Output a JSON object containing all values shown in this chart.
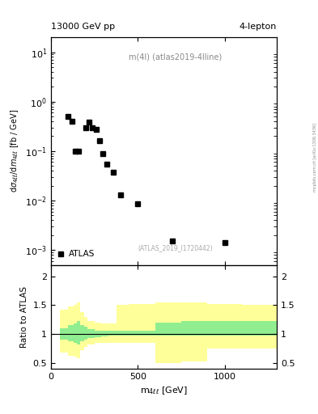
{
  "title_left": "13000 GeV pp",
  "title_right": "4-lepton",
  "annotation": "m(4l) (atlas2019-4lline)",
  "ref_text": "(ATLAS_2019_I1720442)",
  "right_label": "mcplots.cern.ch [arXiv:1306.3436]",
  "ylabel_ratio": "Ratio to ATLAS",
  "legend_label": "ATLAS",
  "data_x": [
    100,
    120,
    140,
    160,
    200,
    220,
    240,
    260,
    280,
    300,
    320,
    360,
    400,
    500,
    700,
    1000
  ],
  "data_y": [
    0.5,
    0.4,
    0.1,
    0.098,
    0.3,
    0.38,
    0.3,
    0.27,
    0.16,
    0.088,
    0.055,
    0.038,
    0.013,
    0.0085,
    0.0015,
    0.0014
  ],
  "ratio_bins_x": [
    50,
    100,
    130,
    150,
    170,
    190,
    210,
    250,
    290,
    330,
    380,
    450,
    600,
    750,
    900,
    1100,
    1300
  ],
  "ratio_green_lo": [
    0.9,
    0.88,
    0.85,
    0.82,
    0.88,
    0.9,
    0.93,
    0.95,
    0.96,
    0.97,
    0.97,
    0.97,
    0.97,
    0.97,
    0.97,
    0.97
  ],
  "ratio_green_hi": [
    1.1,
    1.15,
    1.18,
    1.22,
    1.16,
    1.12,
    1.08,
    1.06,
    1.05,
    1.05,
    1.05,
    1.05,
    1.2,
    1.22,
    1.22,
    1.22
  ],
  "ratio_yellow_lo": [
    0.68,
    0.62,
    0.6,
    0.58,
    0.72,
    0.78,
    0.82,
    0.84,
    0.84,
    0.85,
    0.85,
    0.85,
    0.5,
    0.52,
    0.75,
    0.75
  ],
  "ratio_yellow_hi": [
    1.42,
    1.48,
    1.5,
    1.55,
    1.38,
    1.3,
    1.22,
    1.2,
    1.18,
    1.18,
    1.5,
    1.52,
    1.55,
    1.55,
    1.52,
    1.5
  ],
  "xlim": [
    0,
    1300
  ],
  "ylim_main": [
    0.0005,
    20
  ],
  "ylim_ratio": [
    0.4,
    2.2
  ],
  "yticks_ratio": [
    0.5,
    1.0,
    1.5,
    2.0
  ],
  "ytick_labels_ratio": [
    "0.5",
    "1",
    "1.5",
    "2"
  ],
  "xticks": [
    0,
    500,
    1000
  ],
  "marker": "s",
  "marker_color": "black",
  "marker_size": 4,
  "bg_color": "#ffffff",
  "green_color": "#90ee90",
  "yellow_color": "#ffff99",
  "grid_color": "#cccccc"
}
